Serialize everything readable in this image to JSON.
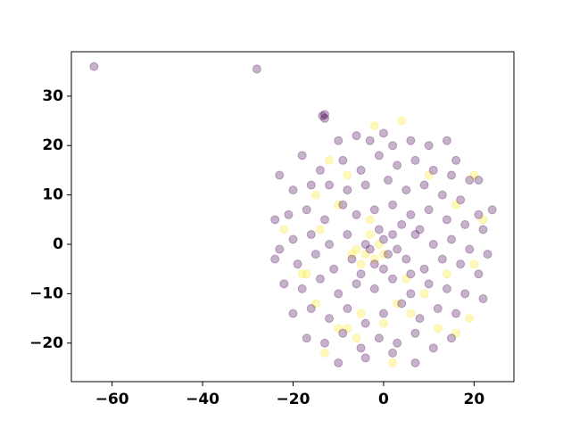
{
  "chart_data": {
    "type": "scatter",
    "xlim": [
      -69,
      28.8
    ],
    "ylim": [
      -27.8,
      39
    ],
    "xticks": [
      {
        "value": -60,
        "label": "−60"
      },
      {
        "value": -40,
        "label": "−40"
      },
      {
        "value": -20,
        "label": "−20"
      },
      0,
      20
    ],
    "yticks": [
      {
        "value": -20,
        "label": "−20"
      },
      {
        "value": -10,
        "label": "−10"
      },
      0,
      10,
      20,
      30
    ],
    "opacity": 0.3,
    "series": [
      {
        "color": "#fde725",
        "x": [
          -2,
          4,
          -12,
          -8,
          10,
          20,
          -15,
          -10,
          16,
          22,
          -22,
          -14,
          -4,
          -2,
          -6,
          -1,
          -5,
          0,
          -3,
          -7,
          20,
          -18,
          -15,
          -10,
          -5,
          6,
          12,
          16,
          19,
          -13,
          -8,
          2,
          -6,
          9,
          14,
          -17,
          0,
          5,
          -3,
          3
        ],
        "values": [
          24,
          25,
          17,
          14,
          14,
          14,
          10,
          8,
          8,
          5,
          3,
          3,
          -2,
          -3,
          -1,
          0,
          -4,
          -2,
          2,
          -2,
          -4,
          -6,
          -12,
          -17,
          -14,
          -14,
          -17,
          -18,
          -15,
          -22,
          -17,
          -24,
          -19,
          -10,
          -6,
          -6,
          -16,
          -7,
          5,
          -12
        ]
      },
      {
        "color": "#440154",
        "x": [
          -64,
          -28,
          -13.5,
          -13,
          -13,
          -10,
          -6,
          -3,
          0,
          2,
          6,
          10,
          14,
          16,
          -18,
          -14,
          -9,
          -5,
          -1,
          3,
          7,
          11,
          15,
          19,
          21,
          -23,
          -20,
          -16,
          -12,
          -8,
          -4,
          1,
          5,
          9,
          13,
          17,
          21,
          24,
          -24,
          -21,
          -17,
          -13,
          -9,
          -6,
          -2,
          2,
          6,
          10,
          14,
          18,
          22,
          -23,
          -20,
          -16,
          -12,
          -8,
          -4,
          0,
          3,
          7,
          11,
          15,
          19,
          23,
          -24,
          -19,
          -15,
          -11,
          -7,
          -2,
          1,
          5,
          9,
          13,
          17,
          21,
          -22,
          -18,
          -14,
          -10,
          -6,
          -2,
          2,
          6,
          10,
          14,
          18,
          22,
          -20,
          -16,
          -12,
          -8,
          -4,
          0,
          4,
          8,
          12,
          16,
          -17,
          -13,
          -9,
          -5,
          -1,
          3,
          7,
          11,
          15,
          -10,
          -4,
          2,
          7,
          0,
          -1,
          4,
          -5,
          2,
          -3,
          6,
          8
        ],
        "values": [
          36,
          35.5,
          26,
          26.3,
          25.5,
          21,
          22,
          21,
          22.5,
          20,
          21,
          20,
          21,
          17,
          18,
          15,
          17,
          15,
          18,
          16,
          17,
          15,
          14,
          13,
          13,
          14,
          11,
          12,
          12,
          11,
          12,
          13,
          11,
          12,
          10,
          9,
          6,
          7,
          5,
          6,
          7,
          5,
          8,
          6,
          7,
          8,
          6,
          7,
          5,
          4,
          3,
          -1,
          1,
          2,
          0,
          2,
          0,
          1,
          -1,
          2,
          0,
          1,
          -1,
          -2,
          -3,
          -4,
          -2,
          -5,
          -3,
          -4,
          -2,
          -3,
          -5,
          -3,
          -4,
          -6,
          -8,
          -9,
          -7,
          -10,
          -8,
          -9,
          -7,
          -10,
          -8,
          -9,
          -10,
          -11,
          -14,
          -13,
          -15,
          -13,
          -16,
          -14,
          -12,
          -15,
          -13,
          -14,
          -19,
          -20,
          -18,
          -21,
          -19,
          -20,
          -18,
          -21,
          -19,
          -24,
          -23,
          -22,
          -24,
          -5,
          3,
          4,
          -6,
          2,
          -1,
          -6,
          3
        ]
      }
    ]
  }
}
